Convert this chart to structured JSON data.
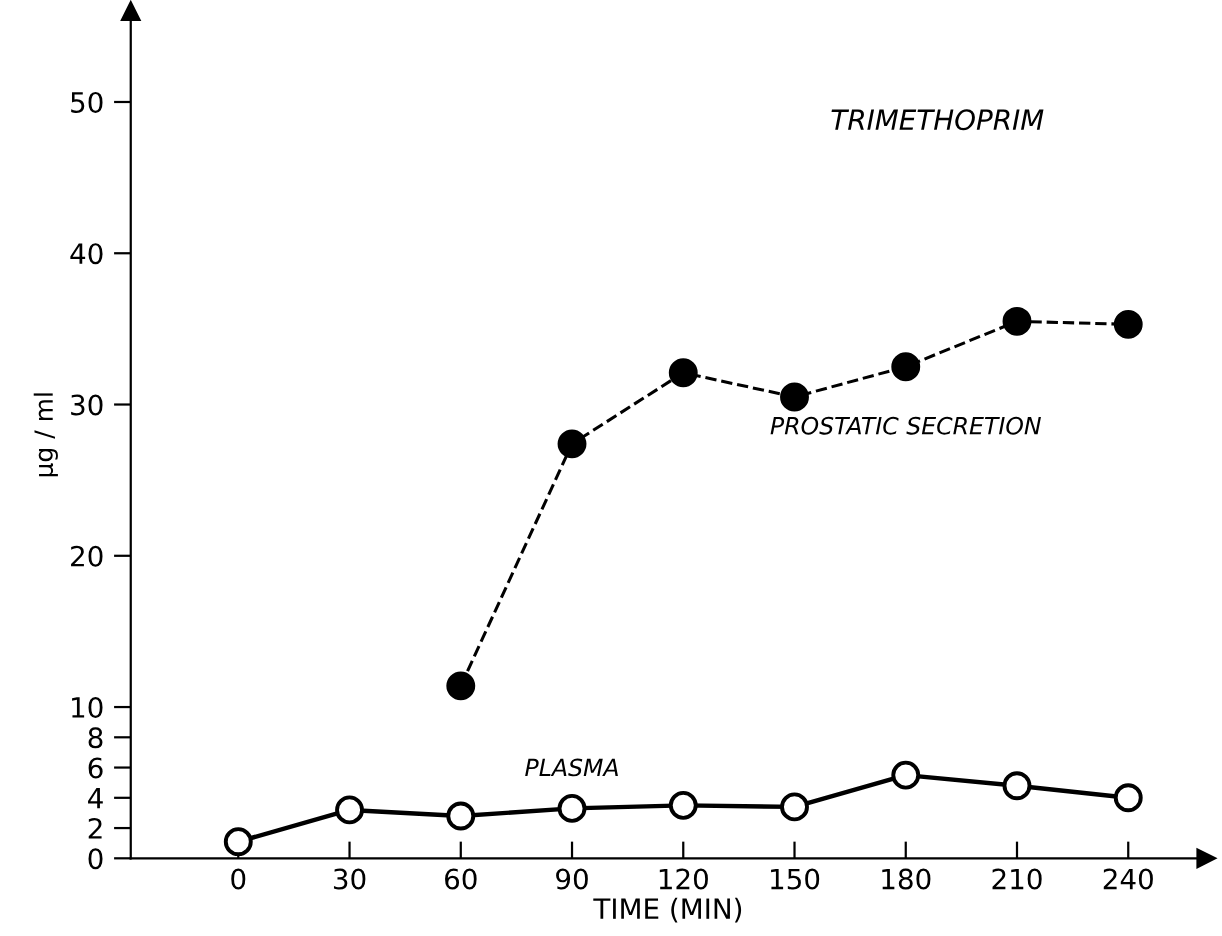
{
  "chart_data": {
    "type": "line",
    "title": "TRIMETHOPRIM",
    "xlabel": "TIME (MIN)",
    "ylabel": "μg / ml",
    "x": [
      0,
      30,
      60,
      90,
      120,
      150,
      180,
      210,
      240
    ],
    "series": [
      {
        "name": "PROSTATIC SECRETION",
        "color": "#000000",
        "line_style": "dashed",
        "marker": "circle",
        "values": [
          null,
          null,
          11.4,
          27.4,
          32.1,
          30.5,
          32.5,
          35.5,
          35.3
        ]
      },
      {
        "name": "PLASMA",
        "color": "#000000",
        "line_style": "solid",
        "marker": "circle",
        "values": [
          1.1,
          3.2,
          2.8,
          3.3,
          3.5,
          3.4,
          5.5,
          4.8,
          4.0
        ]
      }
    ],
    "xlim": [
      -29,
      261
    ],
    "ylim": [
      0,
      56
    ],
    "xticks": [
      0,
      30,
      60,
      90,
      120,
      150,
      180,
      210,
      240
    ],
    "yticks": [
      0,
      2,
      4,
      6,
      8,
      10,
      20,
      30,
      40,
      50
    ],
    "grid": false,
    "legend": false
  }
}
